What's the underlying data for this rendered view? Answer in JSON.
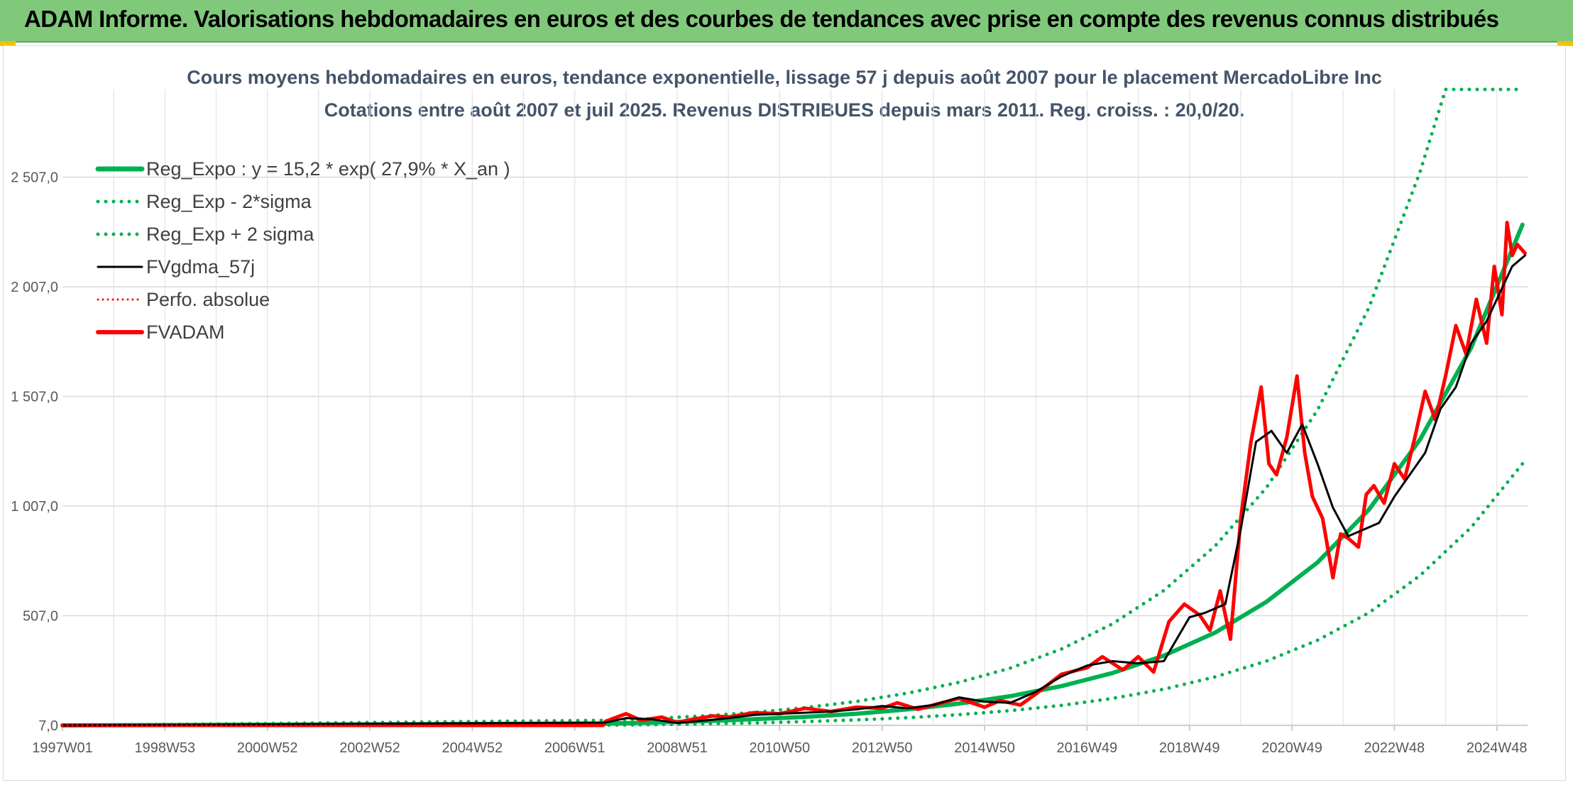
{
  "header": {
    "title": "ADAM Informe. Valorisations hebdomadaires en euros et des courbes de tendances avec prise en compte des revenus connus distribués"
  },
  "colors": {
    "header_bg": "#80c97b",
    "reg_green": "#00b050",
    "fv_black": "#000000",
    "fvadam_red": "#ff0000",
    "grid": "#d9d9d9"
  },
  "chart_data": {
    "type": "line",
    "title": "Cours moyens hebdomadaires en euros, tendance exponentielle, lissage 57 j depuis août 2007 pour le placement MercadoLibre Inc",
    "subtitle": "Cotations entre août 2007 et juil 2025. Revenus DISTRIBUES depuis mars 2011. Reg. croiss. : 20,0/20.",
    "x_ticks": [
      "1997W01",
      "1998W53",
      "2000W52",
      "2002W52",
      "2004W52",
      "2006W51",
      "2008W51",
      "2010W50",
      "2012W50",
      "2014W50",
      "2016W49",
      "2018W49",
      "2020W49",
      "2022W48",
      "2024W48"
    ],
    "y_ticks": [
      "7,0",
      "507,0",
      "1 007,0",
      "1 507,0",
      "2 007,0",
      "2 507,0"
    ],
    "ylim": [
      7,
      2907
    ],
    "xlim": [
      1997.0,
      2025.6
    ],
    "grid": true,
    "legend_position": "top-left",
    "legend": [
      {
        "label": "Reg_Expo : y = 15,2 * exp( 27,9% *  X_an )",
        "style": "solid",
        "color": "#00b050"
      },
      {
        "label": "Reg_Exp - 2*sigma",
        "style": "dotted",
        "color": "#00b050"
      },
      {
        "label": "Reg_Exp + 2 sigma",
        "style": "dotted",
        "color": "#00b050"
      },
      {
        "label": "FVgdma_57j",
        "style": "solid",
        "color": "#000000"
      },
      {
        "label": "Perfo. absolue",
        "style": "dotted",
        "color": "#ff0000"
      },
      {
        "label": "FVADAM",
        "style": "solid",
        "color": "#ff0000"
      }
    ],
    "series": [
      {
        "name": "Reg_Expo : y = 15,2 * exp( 27,9% *  X_an )",
        "x": [
          1997.0,
          2007.6,
          2008.5,
          2009.5,
          2010.5,
          2011.5,
          2012.5,
          2013.5,
          2014.5,
          2015.5,
          2016.5,
          2017.5,
          2018.5,
          2019.5,
          2020.5,
          2021.5,
          2022.5,
          2023.5,
          2024.5,
          2025.5
        ],
        "y": [
          7,
          15,
          20,
          26,
          35,
          46,
          60,
          80,
          106,
          140,
          186,
          246,
          325,
          430,
          570,
          750,
          990,
          1310,
          1730,
          2290
        ]
      },
      {
        "name": "Reg_Exp - 2*sigma",
        "x": [
          1997.0,
          2007.6,
          2008.5,
          2009.5,
          2010.5,
          2011.5,
          2012.5,
          2013.5,
          2014.5,
          2015.5,
          2016.5,
          2017.5,
          2018.5,
          2019.5,
          2020.5,
          2021.5,
          2022.5,
          2023.5,
          2024.5,
          2025.5
        ],
        "y": [
          7,
          8,
          10,
          14,
          18,
          24,
          32,
          42,
          56,
          74,
          98,
          130,
          172,
          228,
          300,
          395,
          520,
          690,
          910,
          1200
        ]
      },
      {
        "name": "Reg_Exp + 2 sigma",
        "x": [
          1997.0,
          2007.6,
          2008.5,
          2009.5,
          2010.5,
          2011.5,
          2012.5,
          2013.5,
          2014.5,
          2015.5,
          2016.5,
          2017.5,
          2018.5,
          2019.5,
          2020.5,
          2021.5,
          2022.5,
          2023.5,
          2024.0,
          2025.5
        ],
        "y": [
          7,
          30,
          38,
          50,
          66,
          88,
          116,
          154,
          203,
          268,
          355,
          470,
          622,
          825,
          1090,
          1445,
          1910,
          2530,
          2907,
          2907
        ]
      },
      {
        "name": "FVgdma_57j",
        "x": [
          1997.0,
          2007.6,
          2008.0,
          2008.5,
          2009.0,
          2009.5,
          2010.0,
          2010.5,
          2011.0,
          2011.5,
          2012.0,
          2012.5,
          2013.0,
          2013.5,
          2014.0,
          2014.5,
          2015.0,
          2015.5,
          2016.0,
          2016.5,
          2017.0,
          2017.5,
          2018.0,
          2018.5,
          2019.0,
          2019.3,
          2019.7,
          2020.0,
          2020.3,
          2020.6,
          2020.9,
          2021.2,
          2021.5,
          2021.8,
          2022.1,
          2022.4,
          2022.7,
          2023.0,
          2023.3,
          2023.6,
          2023.9,
          2024.2,
          2024.5,
          2024.8,
          2025.1,
          2025.3,
          2025.55
        ],
        "y": [
          7,
          20,
          40,
          35,
          18,
          28,
          40,
          55,
          60,
          65,
          70,
          80,
          95,
          85,
          100,
          135,
          115,
          110,
          160,
          230,
          280,
          300,
          290,
          300,
          500,
          520,
          560,
          900,
          1300,
          1350,
          1250,
          1380,
          1200,
          1000,
          870,
          900,
          930,
          1050,
          1150,
          1250,
          1450,
          1550,
          1750,
          1850,
          2000,
          2100,
          2150
        ]
      },
      {
        "name": "Perfo. absolue",
        "x": [
          1997.0,
          2007.6
        ],
        "y": [
          7,
          7
        ]
      },
      {
        "name": "FVADAM",
        "x": [
          1997.0,
          2007.55,
          2007.6,
          2008.0,
          2008.3,
          2008.7,
          2009.0,
          2009.3,
          2009.7,
          2010.0,
          2010.5,
          2011.0,
          2011.5,
          2012.0,
          2012.5,
          2013.0,
          2013.3,
          2013.7,
          2014.0,
          2014.5,
          2015.0,
          2015.3,
          2015.7,
          2016.0,
          2016.5,
          2017.0,
          2017.3,
          2017.7,
          2018.0,
          2018.3,
          2018.6,
          2018.9,
          2019.2,
          2019.4,
          2019.6,
          2019.8,
          2020.0,
          2020.2,
          2020.4,
          2020.55,
          2020.7,
          2020.9,
          2021.1,
          2021.25,
          2021.4,
          2021.6,
          2021.8,
          2021.95,
          2022.1,
          2022.3,
          2022.45,
          2022.6,
          2022.8,
          2023.0,
          2023.2,
          2023.4,
          2023.6,
          2023.8,
          2024.0,
          2024.2,
          2024.4,
          2024.6,
          2024.8,
          2024.95,
          2025.1,
          2025.2,
          2025.3,
          2025.4,
          2025.55
        ],
        "y": [
          7,
          7,
          25,
          60,
          30,
          45,
          20,
          35,
          50,
          45,
          65,
          60,
          85,
          70,
          90,
          85,
          110,
          80,
          100,
          130,
          90,
          120,
          100,
          150,
          240,
          270,
          320,
          260,
          320,
          250,
          480,
          560,
          510,
          440,
          620,
          400,
          950,
          1300,
          1550,
          1200,
          1150,
          1320,
          1600,
          1250,
          1050,
          950,
          680,
          880,
          860,
          820,
          1060,
          1100,
          1020,
          1200,
          1130,
          1320,
          1530,
          1400,
          1600,
          1830,
          1700,
          1950,
          1750,
          2100,
          1880,
          2300,
          2150,
          2200,
          2160
        ]
      }
    ]
  }
}
